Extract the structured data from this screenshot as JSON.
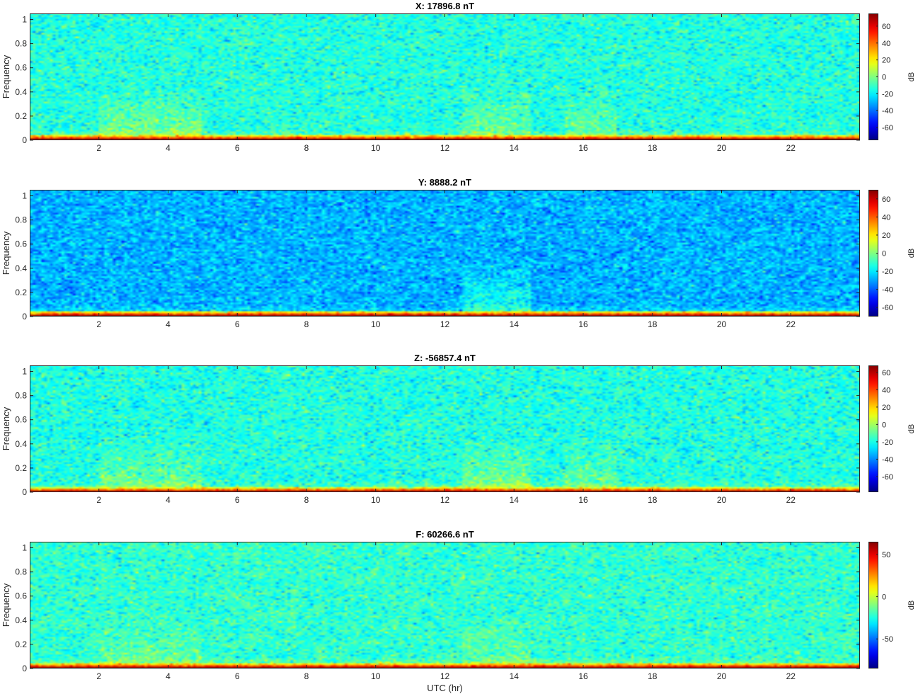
{
  "chart_data": [
    {
      "type": "heatmap",
      "title": "X: 17896.8 nT",
      "xlabel": "",
      "ylabel": "Frequency",
      "xlim": [
        0,
        24
      ],
      "ylim": [
        0,
        1.05
      ],
      "xticks": [
        2,
        4,
        6,
        8,
        10,
        12,
        14,
        16,
        18,
        20,
        22
      ],
      "yticks": [
        0,
        0.2,
        0.4,
        0.6,
        0.8,
        1
      ],
      "colormap": "jet",
      "colorbar": {
        "label": "dB",
        "clim": [
          -75,
          75
        ],
        "ticks": [
          -60,
          -40,
          -20,
          0,
          20,
          40,
          60
        ]
      },
      "background_db": -14,
      "low_freq_band_db": 70,
      "enhanced_regions": [
        {
          "x_range": [
            2,
            5
          ],
          "level_db": 2
        },
        {
          "x_range": [
            12.5,
            14.5
          ],
          "level_db": 0
        },
        {
          "x_range": [
            15.5,
            17
          ],
          "level_db": -2
        }
      ]
    },
    {
      "type": "heatmap",
      "title": "Y: 8888.2 nT",
      "xlabel": "",
      "ylabel": "Frequency",
      "xlim": [
        0,
        24
      ],
      "ylim": [
        0,
        1.05
      ],
      "xticks": [
        2,
        4,
        6,
        8,
        10,
        12,
        14,
        16,
        18,
        20,
        22
      ],
      "yticks": [
        0,
        0.2,
        0.4,
        0.6,
        0.8,
        1
      ],
      "colormap": "jet",
      "colorbar": {
        "label": "dB",
        "clim": [
          -70,
          70
        ],
        "ticks": [
          -60,
          -40,
          -20,
          0,
          20,
          40,
          60
        ]
      },
      "background_db": -28,
      "low_freq_band_db": 68,
      "enhanced_regions": [
        {
          "x_range": [
            12.5,
            14.5
          ],
          "level_db": -10
        }
      ]
    },
    {
      "type": "heatmap",
      "title": "Z: -56857.4 nT",
      "xlabel": "",
      "ylabel": "Frequency",
      "xlim": [
        0,
        24
      ],
      "ylim": [
        0,
        1.05
      ],
      "xticks": [
        2,
        4,
        6,
        8,
        10,
        12,
        14,
        16,
        18,
        20,
        22
      ],
      "yticks": [
        0,
        0.2,
        0.4,
        0.6,
        0.8,
        1
      ],
      "colormap": "jet",
      "colorbar": {
        "label": "dB",
        "clim": [
          -78,
          68
        ],
        "ticks": [
          -60,
          -40,
          -20,
          0,
          20,
          40,
          60
        ]
      },
      "background_db": -19,
      "low_freq_band_db": 60,
      "enhanced_regions": [
        {
          "x_range": [
            2,
            5
          ],
          "level_db": -6
        },
        {
          "x_range": [
            12.5,
            14.5
          ],
          "level_db": -2
        },
        {
          "x_range": [
            15.5,
            17
          ],
          "level_db": -6
        }
      ]
    },
    {
      "type": "heatmap",
      "title": "F: 60266.6 nT",
      "xlabel": "UTC (hr)",
      "ylabel": "Frequency",
      "xlim": [
        0,
        24
      ],
      "ylim": [
        0,
        1.05
      ],
      "xticks": [
        2,
        4,
        6,
        8,
        10,
        12,
        14,
        16,
        18,
        20,
        22
      ],
      "yticks": [
        0,
        0.2,
        0.4,
        0.6,
        0.8,
        1
      ],
      "colormap": "jet",
      "colorbar": {
        "label": "dB",
        "clim": [
          -85,
          65
        ],
        "ticks": [
          -50,
          0,
          50
        ]
      },
      "background_db": -22,
      "low_freq_band_db": 62,
      "enhanced_regions": [
        {
          "x_range": [
            2,
            5
          ],
          "level_db": -12
        },
        {
          "x_range": [
            12.5,
            14.5
          ],
          "level_db": -12
        }
      ]
    }
  ]
}
